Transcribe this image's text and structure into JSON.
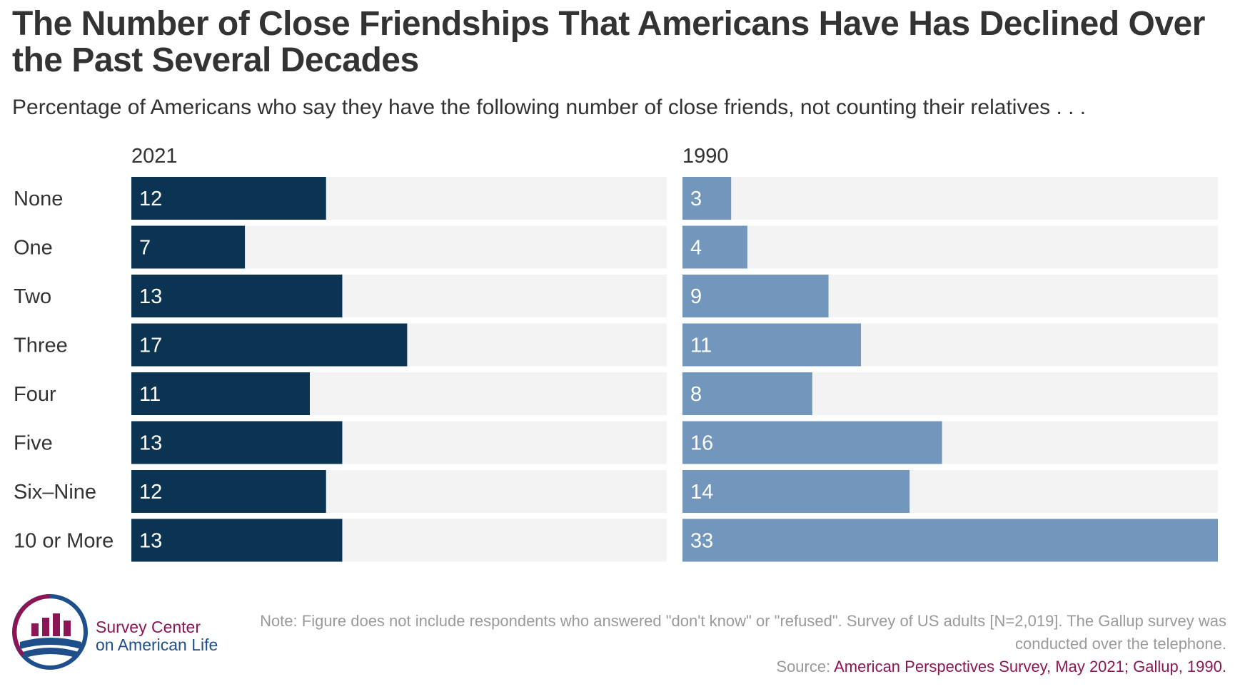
{
  "title": "The Number of Close Friendships That Americans Have Has Declined Over the Past Several Decades",
  "subtitle": "Percentage of Americans who say they have the following number of close friends, not counting their relatives . . .",
  "colors": {
    "bar_2021": "#0b3352",
    "bar_1990": "#7296bc",
    "track": "#f3f3f3",
    "brand_maroon": "#8c1555",
    "brand_blue": "#1f4f8a"
  },
  "chart_data": {
    "type": "bar",
    "orientation": "horizontal",
    "categories": [
      "None",
      "One",
      "Two",
      "Three",
      "Four",
      "Five",
      "Six–Nine",
      "10 or More"
    ],
    "series": [
      {
        "name": "2021",
        "values": [
          12,
          7,
          13,
          17,
          11,
          13,
          12,
          13
        ]
      },
      {
        "name": "1990",
        "values": [
          3,
          4,
          9,
          11,
          8,
          16,
          14,
          33
        ]
      }
    ],
    "xlim": [
      0,
      33
    ],
    "unit": "percent",
    "legend": "panel headers"
  },
  "footer": {
    "logo_line1": "Survey Center",
    "logo_line2": "on American Life",
    "note": "Note: Figure does not include respondents who answered \"don't know\" or \"refused\". Survey of US adults [N=2,019]. The Gallup survey was conducted over the telephone.",
    "source_label": "Source:",
    "source_text": "American Perspectives Survey, May 2021; Gallup, 1990."
  }
}
